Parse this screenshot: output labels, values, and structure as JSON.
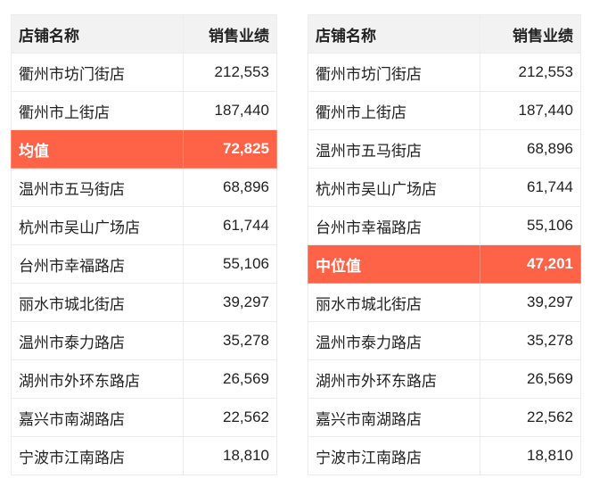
{
  "tables": [
    {
      "headers": [
        "店铺名称",
        "销售业绩"
      ],
      "rows": [
        [
          "衢州市坊门街店",
          "212,553"
        ],
        [
          "衢州市上街店",
          "187,440"
        ],
        [
          "均值",
          "72,825"
        ],
        [
          "温州市五马街店",
          "68,896"
        ],
        [
          "杭州市吴山广场店",
          "61,744"
        ],
        [
          "台州市幸福路店",
          "55,106"
        ],
        [
          "丽水市城北街店",
          "39,297"
        ],
        [
          "温州市泰力路店",
          "35,278"
        ],
        [
          "湖州市外环东路店",
          "26,569"
        ],
        [
          "嘉兴市南湖路店",
          "22,562"
        ],
        [
          "宁波市江南路店",
          "18,810"
        ]
      ],
      "highlight_row": 2
    },
    {
      "headers": [
        "店铺名称",
        "销售业绩"
      ],
      "rows": [
        [
          "衢州市坊门街店",
          "212,553"
        ],
        [
          "衢州市上街店",
          "187,440"
        ],
        [
          "温州市五马街店",
          "68,896"
        ],
        [
          "杭州市吴山广场店",
          "61,744"
        ],
        [
          "台州市幸福路店",
          "55,106"
        ],
        [
          "中位值",
          "47,201"
        ],
        [
          "丽水市城北街店",
          "39,297"
        ],
        [
          "温州市泰力路店",
          "35,278"
        ],
        [
          "湖州市外环东路店",
          "26,569"
        ],
        [
          "嘉兴市南湖路店",
          "22,562"
        ],
        [
          "宁波市江南路店",
          "18,810"
        ]
      ],
      "highlight_row": 5
    }
  ],
  "colors": {
    "highlight": "#ff6347",
    "header_bg": "#f2f2f2"
  }
}
